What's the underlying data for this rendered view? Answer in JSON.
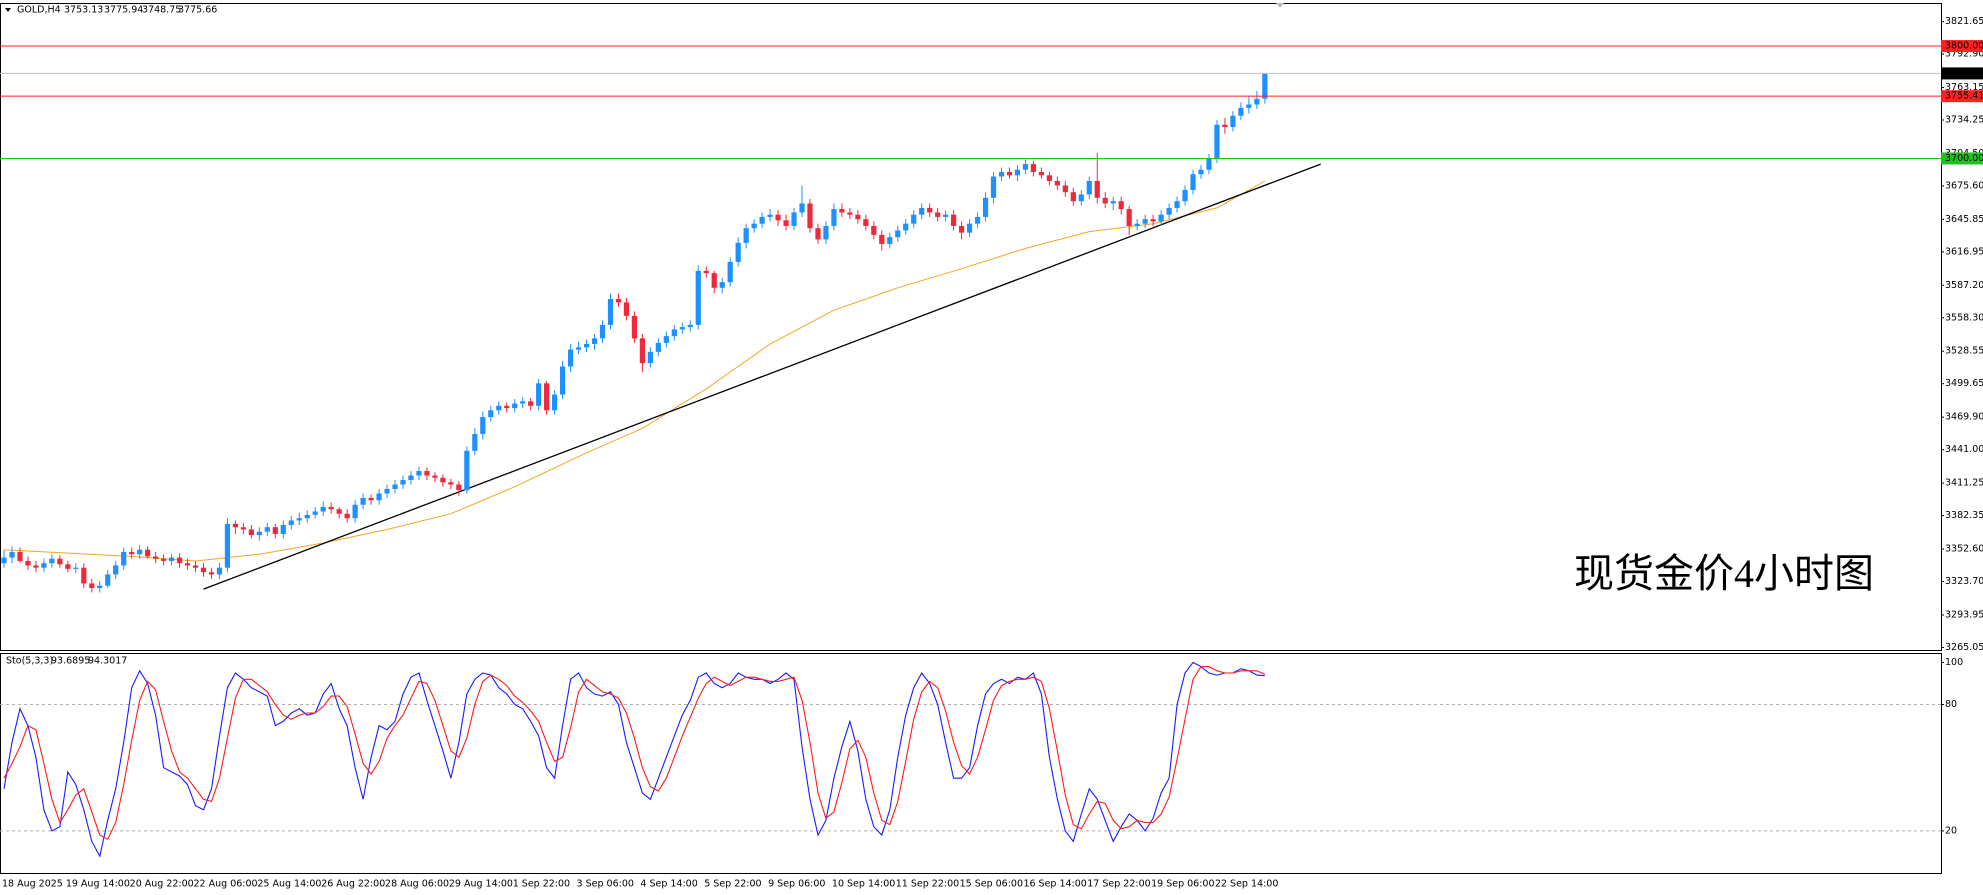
{
  "chart_data": [
    {
      "type": "candlestick",
      "title": "GOLD,H4",
      "annotation": "现货金价4小时图",
      "categories": [
        "18 Aug 2025",
        null,
        null,
        null,
        null,
        null,
        null,
        null,
        "19 Aug 14:00",
        null,
        null,
        null,
        null,
        null,
        null,
        null,
        "20 Aug 22:00",
        null,
        null,
        null,
        null,
        null,
        null,
        null,
        "22 Aug 06:00",
        null,
        null,
        null,
        null,
        null,
        null,
        null,
        "25 Aug 14:00",
        null,
        null,
        null,
        null,
        null,
        null,
        null,
        "26 Aug 22:00",
        null,
        null,
        null,
        null,
        null,
        null,
        null,
        "28 Aug 06:00",
        null,
        null,
        null,
        null,
        null,
        null,
        null,
        "29 Aug 14:00",
        null,
        null,
        null,
        null,
        null,
        null,
        null,
        "1 Sep 22:00",
        null,
        null,
        null,
        null,
        null,
        null,
        null,
        "3 Sep 06:00",
        null,
        null,
        null,
        null,
        null,
        null,
        null,
        "4 Sep 14:00",
        null,
        null,
        null,
        null,
        null,
        null,
        null,
        "5 Sep 22:00",
        null,
        null,
        null,
        null,
        null,
        null,
        null,
        "9 Sep 06:00",
        null,
        null,
        null,
        null,
        null,
        null,
        null,
        "10 Sep 14:00",
        null,
        null,
        null,
        null,
        null,
        null,
        null,
        "11 Sep 22:00",
        null,
        null,
        null,
        null,
        null,
        null,
        null,
        "15 Sep 06:00",
        null,
        null,
        null,
        null,
        null,
        null,
        null,
        "16 Sep 14:00",
        null,
        null,
        null,
        null,
        null,
        null,
        null,
        "17 Sep 22:00",
        null,
        null,
        null,
        null,
        null,
        null,
        null,
        "19 Sep 06:00",
        null,
        null,
        null,
        null,
        null,
        null,
        null,
        "22 Sep 14:00",
        null,
        null,
        null,
        null,
        null,
        null
      ],
      "open": [
        3340,
        3345,
        3350,
        3342,
        3338,
        3336,
        3340,
        3344,
        3339,
        3335,
        3336,
        3322,
        3318,
        3320,
        3330,
        3338,
        3350,
        3348,
        3352,
        3346,
        3344,
        3342,
        3345,
        3340,
        3338,
        3336,
        3332,
        3330,
        3336,
        3375,
        3372,
        3370,
        3365,
        3368,
        3372,
        3366,
        3374,
        3378,
        3380,
        3383,
        3386,
        3390,
        3388,
        3384,
        3380,
        3392,
        3398,
        3396,
        3402,
        3406,
        3410,
        3414,
        3418,
        3422,
        3418,
        3416,
        3412,
        3410,
        3405,
        3440,
        3455,
        3470,
        3476,
        3480,
        3478,
        3482,
        3484,
        3480,
        3500,
        3476,
        3490,
        3515,
        3530,
        3532,
        3535,
        3540,
        3552,
        3575,
        3572,
        3560,
        3540,
        3518,
        3528,
        3536,
        3542,
        3548,
        3550,
        3552,
        3600,
        3598,
        3585,
        3590,
        3608,
        3625,
        3638,
        3642,
        3648,
        3650,
        3645,
        3640,
        3652,
        3660,
        3638,
        3628,
        3640,
        3655,
        3652,
        3650,
        3646,
        3640,
        3632,
        3624,
        3630,
        3636,
        3642,
        3650,
        3656,
        3652,
        3648,
        3650,
        3640,
        3634,
        3642,
        3648,
        3665,
        3684,
        3688,
        3685,
        3690,
        3695,
        3688,
        3685,
        3680,
        3676,
        3670,
        3662,
        3668,
        3680,
        3665,
        3660,
        3662,
        3655,
        3640,
        3642,
        3646,
        3644,
        3650,
        3656,
        3662,
        3672,
        3686,
        3690,
        3700,
        3730,
        3728,
        3738,
        3745,
        3748,
        3753.13
      ],
      "high": [
        3352,
        3355,
        3354,
        3346,
        3342,
        3344,
        3348,
        3347,
        3342,
        3340,
        3340,
        3326,
        3324,
        3334,
        3342,
        3354,
        3354,
        3356,
        3355,
        3350,
        3348,
        3348,
        3349,
        3344,
        3342,
        3340,
        3336,
        3340,
        3380,
        3378,
        3376,
        3374,
        3372,
        3376,
        3375,
        3378,
        3382,
        3385,
        3387,
        3390,
        3395,
        3394,
        3390,
        3388,
        3396,
        3402,
        3401,
        3406,
        3410,
        3414,
        3418,
        3422,
        3426,
        3425,
        3421,
        3419,
        3415,
        3413,
        3444,
        3460,
        3475,
        3480,
        3484,
        3483,
        3486,
        3488,
        3487,
        3504,
        3502,
        3494,
        3520,
        3535,
        3537,
        3539,
        3544,
        3556,
        3580,
        3580,
        3576,
        3564,
        3544,
        3532,
        3540,
        3546,
        3552,
        3554,
        3556,
        3605,
        3604,
        3600,
        3594,
        3612,
        3630,
        3642,
        3646,
        3652,
        3655,
        3654,
        3650,
        3656,
        3676,
        3664,
        3642,
        3644,
        3660,
        3660,
        3656,
        3654,
        3650,
        3644,
        3636,
        3634,
        3640,
        3646,
        3654,
        3660,
        3660,
        3656,
        3654,
        3654,
        3644,
        3646,
        3652,
        3670,
        3688,
        3692,
        3692,
        3694,
        3699,
        3698,
        3692,
        3688,
        3684,
        3680,
        3674,
        3672,
        3684,
        3705,
        3670,
        3666,
        3666,
        3658,
        3646,
        3650,
        3650,
        3654,
        3660,
        3666,
        3676,
        3690,
        3694,
        3704,
        3734,
        3736,
        3742,
        3750,
        3756,
        3760,
        3775.94
      ],
      "low": [
        3336,
        3340,
        3340,
        3334,
        3332,
        3332,
        3336,
        3336,
        3332,
        3331,
        3318,
        3314,
        3314,
        3318,
        3326,
        3334,
        3344,
        3344,
        3344,
        3340,
        3338,
        3338,
        3336,
        3334,
        3332,
        3328,
        3326,
        3326,
        3332,
        3366,
        3366,
        3362,
        3360,
        3364,
        3362,
        3362,
        3370,
        3374,
        3376,
        3380,
        3382,
        3384,
        3380,
        3376,
        3376,
        3388,
        3392,
        3392,
        3398,
        3402,
        3406,
        3410,
        3414,
        3414,
        3412,
        3408,
        3406,
        3400,
        3402,
        3436,
        3450,
        3466,
        3472,
        3474,
        3474,
        3478,
        3476,
        3476,
        3472,
        3472,
        3486,
        3510,
        3526,
        3528,
        3530,
        3536,
        3548,
        3568,
        3556,
        3536,
        3510,
        3514,
        3524,
        3532,
        3538,
        3544,
        3546,
        3548,
        3594,
        3580,
        3580,
        3586,
        3604,
        3620,
        3634,
        3638,
        3644,
        3640,
        3636,
        3636,
        3648,
        3634,
        3624,
        3624,
        3636,
        3648,
        3646,
        3642,
        3636,
        3628,
        3618,
        3620,
        3626,
        3632,
        3638,
        3646,
        3648,
        3644,
        3644,
        3636,
        3628,
        3630,
        3638,
        3644,
        3660,
        3680,
        3682,
        3680,
        3686,
        3684,
        3682,
        3676,
        3672,
        3666,
        3658,
        3658,
        3664,
        3660,
        3656,
        3654,
        3650,
        3632,
        3636,
        3638,
        3640,
        3640,
        3646,
        3652,
        3658,
        3668,
        3682,
        3686,
        3696,
        3722,
        3724,
        3734,
        3740,
        3744,
        3748.75
      ],
      "close": [
        3345,
        3350,
        3342,
        3338,
        3336,
        3340,
        3344,
        3339,
        3335,
        3336,
        3322,
        3318,
        3320,
        3330,
        3338,
        3350,
        3348,
        3352,
        3346,
        3344,
        3342,
        3345,
        3340,
        3338,
        3336,
        3332,
        3330,
        3336,
        3375,
        3372,
        3370,
        3365,
        3368,
        3372,
        3366,
        3374,
        3378,
        3380,
        3383,
        3386,
        3390,
        3388,
        3384,
        3380,
        3392,
        3398,
        3396,
        3402,
        3406,
        3410,
        3414,
        3418,
        3422,
        3418,
        3416,
        3412,
        3410,
        3405,
        3440,
        3455,
        3470,
        3476,
        3480,
        3478,
        3482,
        3484,
        3480,
        3500,
        3476,
        3490,
        3515,
        3530,
        3532,
        3535,
        3540,
        3552,
        3575,
        3572,
        3560,
        3540,
        3518,
        3528,
        3536,
        3542,
        3548,
        3550,
        3552,
        3600,
        3598,
        3585,
        3590,
        3608,
        3625,
        3638,
        3642,
        3648,
        3650,
        3645,
        3640,
        3652,
        3660,
        3638,
        3628,
        3640,
        3655,
        3652,
        3650,
        3646,
        3640,
        3632,
        3624,
        3630,
        3636,
        3642,
        3650,
        3656,
        3652,
        3648,
        3650,
        3640,
        3634,
        3642,
        3648,
        3665,
        3684,
        3688,
        3685,
        3690,
        3695,
        3688,
        3685,
        3680,
        3676,
        3670,
        3662,
        3668,
        3680,
        3665,
        3660,
        3662,
        3655,
        3640,
        3642,
        3646,
        3644,
        3650,
        3656,
        3662,
        3672,
        3686,
        3690,
        3700,
        3730,
        3728,
        3738,
        3745,
        3748,
        3753,
        3775.66
      ],
      "up_color": "#1e90ff",
      "down_color": "#f0283c",
      "ylim": [
        3262.8,
        3837.4
      ],
      "yticks": [
        3821.65,
        {
          "value": 3792.9,
          "label": "3792.90"
        },
        3763.15,
        3734.25,
        {
          "value": 3704.5,
          "label": "3704.50"
        },
        {
          "value": 3675.6,
          "label": "3675.60"
        },
        3645.85,
        3616.95,
        {
          "value": 3587.2,
          "label": "3587.20"
        },
        {
          "value": 3558.3,
          "label": "3558.30"
        },
        3528.55,
        3499.65,
        {
          "value": 3469.9,
          "label": "3469.90"
        },
        {
          "value": 3441,
          "label": "3441.00"
        },
        3411.25,
        3382.35,
        {
          "value": 3352.6,
          "label": "3352.60"
        },
        {
          "value": 3323.7,
          "label": "3323.70"
        },
        3293.95,
        3265.05
      ],
      "levels": [
        {
          "value": 3800,
          "label": "3800.00",
          "color": "#ff2020"
        },
        {
          "value": 3755.41,
          "color": "#ff2020"
        },
        {
          "value": 3700,
          "label": "3700.00",
          "color": "#22c022"
        }
      ],
      "lines": [
        {
          "color": "#f5a623",
          "x": [
            0,
            8,
            16,
            24,
            32,
            40,
            48,
            56,
            64,
            72,
            80,
            88,
            96,
            104,
            112,
            120,
            128,
            136,
            144,
            152,
            158
          ],
          "values": [
            3352,
            3349,
            3346,
            3342,
            3348,
            3358,
            3370,
            3384,
            3408,
            3435,
            3460,
            3495,
            3535,
            3565,
            3585,
            3602,
            3620,
            3635,
            3642,
            3656,
            3680
          ]
        },
        {
          "color": "#000000",
          "x": [
            25,
            165
          ],
          "values": [
            3317,
            3695
          ]
        }
      ]
    },
    {
      "type": "line",
      "title": "Sto(5,3,3)",
      "series": [
        {
          "color": "#1a1aff",
          "values": [
            40,
            62,
            78,
            70,
            55,
            30,
            20,
            22,
            48,
            42,
            30,
            15,
            8,
            25,
            40,
            62,
            88,
            96,
            90,
            75,
            50,
            48,
            46,
            42,
            32,
            30,
            40,
            65,
            88,
            95,
            92,
            88,
            86,
            84,
            70,
            72,
            76,
            78,
            75,
            76,
            85,
            90,
            78,
            70,
            50,
            35,
            55,
            70,
            68,
            72,
            85,
            93,
            95,
            82,
            70,
            58,
            45,
            62,
            85,
            92,
            95,
            94,
            88,
            85,
            80,
            78,
            72,
            65,
            50,
            45,
            70,
            92,
            95,
            88,
            85,
            84,
            86,
            80,
            62,
            50,
            38,
            35,
            45,
            55,
            65,
            75,
            82,
            93,
            95,
            90,
            88,
            90,
            95,
            93,
            92,
            92,
            90,
            92,
            95,
            92,
            60,
            35,
            18,
            25,
            45,
            60,
            72,
            58,
            35,
            22,
            18,
            30,
            55,
            75,
            88,
            95,
            90,
            80,
            62,
            45,
            45,
            50,
            70,
            85,
            90,
            92,
            90,
            93,
            92,
            95,
            85,
            55,
            35,
            20,
            15,
            28,
            40,
            35,
            25,
            15,
            22,
            28,
            25,
            20,
            26,
            38,
            45,
            80,
            95,
            100,
            98,
            95,
            94,
            95,
            95,
            97,
            96,
            94,
            93.6895
          ]
        },
        {
          "color": "#ff1a1a",
          "values": [
            45,
            52,
            60,
            70,
            68,
            52,
            35,
            24,
            30,
            37,
            40,
            29,
            18,
            16,
            24,
            42,
            63,
            82,
            91,
            87,
            72,
            58,
            48,
            45,
            40,
            35,
            34,
            45,
            64,
            83,
            92,
            92,
            89,
            86,
            80,
            75,
            73,
            75,
            76,
            76,
            79,
            84,
            84,
            79,
            66,
            52,
            47,
            53,
            64,
            70,
            75,
            83,
            91,
            90,
            82,
            70,
            58,
            55,
            64,
            80,
            91,
            94,
            92,
            89,
            84,
            81,
            77,
            72,
            62,
            53,
            55,
            69,
            86,
            92,
            89,
            86,
            85,
            83,
            76,
            64,
            50,
            41,
            39,
            45,
            55,
            65,
            74,
            83,
            90,
            93,
            91,
            89,
            91,
            93,
            93,
            92,
            91,
            91,
            92,
            93,
            82,
            62,
            38,
            26,
            29,
            43,
            59,
            63,
            55,
            38,
            25,
            23,
            34,
            53,
            73,
            86,
            91,
            88,
            77,
            62,
            51,
            47,
            55,
            68,
            82,
            89,
            91,
            92,
            92,
            93,
            91,
            78,
            58,
            37,
            23,
            21,
            28,
            34,
            33,
            25,
            21,
            22,
            25,
            24,
            24,
            28,
            36,
            54,
            73,
            92,
            98,
            98,
            96,
            95,
            95,
            96,
            96,
            96,
            94.3017
          ]
        }
      ],
      "ylim": [
        0,
        104
      ],
      "yticks": [
        100,
        80,
        20
      ],
      "levels": [
        80,
        20
      ]
    }
  ]
}
